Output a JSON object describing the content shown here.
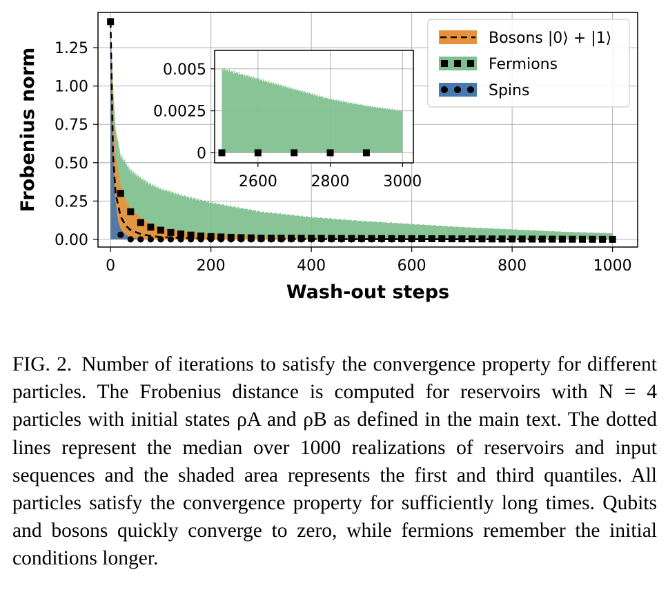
{
  "chart_data": [
    {
      "type": "area",
      "xlabel": "Wash-out steps",
      "ylabel": "Frobenius norm",
      "xlim": [
        -25,
        1050
      ],
      "ylim": [
        -0.05,
        1.48
      ],
      "xticks": [
        "0",
        "200",
        "400",
        "600",
        "800",
        "1000"
      ],
      "yticks": [
        "0.00",
        "0.25",
        "0.50",
        "0.75",
        "1.00",
        "1.25"
      ],
      "grid": true,
      "legend_position": "top-right",
      "series": [
        {
          "name": "Bosons |0⟩ + |1⟩",
          "color": "#e8913a",
          "median_style": "dashed",
          "median": {
            "x": [
              0,
              5,
              10,
              20,
              30,
              40,
              60,
              80,
              100,
              150,
              200,
              300,
              1000
            ],
            "y": [
              1.42,
              0.55,
              0.3,
              0.15,
              0.09,
              0.06,
              0.035,
              0.022,
              0.015,
              0.008,
              0.005,
              0.002,
              0.0
            ]
          },
          "band_upper": {
            "x": [
              0,
              5,
              10,
              20,
              30,
              40,
              60,
              80,
              100,
              150,
              200,
              300,
              400,
              600,
              1000
            ],
            "y": [
              1.42,
              0.9,
              0.55,
              0.35,
              0.26,
              0.2,
              0.14,
              0.1,
              0.08,
              0.05,
              0.035,
              0.02,
              0.012,
              0.006,
              0.002
            ]
          },
          "band_lower": {
            "x": [
              0,
              1000
            ],
            "y": [
              0.0,
              0.0
            ]
          }
        },
        {
          "name": "Fermions",
          "color": "#7fbf8e",
          "median_style": "square markers",
          "median": {
            "x": [
              0,
              20,
              40,
              60,
              80,
              100,
              120,
              140,
              160,
              180,
              200,
              250,
              300,
              1000
            ],
            "y": [
              1.42,
              0.3,
              0.18,
              0.11,
              0.08,
              0.06,
              0.045,
              0.035,
              0.028,
              0.022,
              0.018,
              0.012,
              0.008,
              0.0
            ]
          },
          "band_upper": {
            "x": [
              0,
              5,
              10,
              20,
              40,
              60,
              80,
              100,
              150,
              200,
              300,
              400,
              500,
              600,
              700,
              800,
              900,
              1000
            ],
            "y": [
              1.42,
              1.0,
              0.72,
              0.55,
              0.45,
              0.4,
              0.36,
              0.33,
              0.28,
              0.24,
              0.18,
              0.145,
              0.12,
              0.1,
              0.08,
              0.065,
              0.05,
              0.04
            ]
          },
          "band_lower": {
            "x": [
              0,
              1000
            ],
            "y": [
              0.0,
              0.0
            ]
          }
        },
        {
          "name": "Spins",
          "color": "#4878b0",
          "median_style": "circle markers",
          "median": {
            "x": [
              0,
              5,
              10,
              20,
              30,
              40,
              1000
            ],
            "y": [
              1.42,
              0.3,
              0.08,
              0.03,
              0.01,
              0.0,
              0.0
            ]
          },
          "band_upper": {
            "x": [
              0,
              3,
              6,
              10,
              15,
              20,
              30,
              40,
              60
            ],
            "y": [
              1.42,
              0.9,
              0.5,
              0.25,
              0.12,
              0.07,
              0.03,
              0.015,
              0.0
            ]
          },
          "band_lower": {
            "x": [
              0,
              1000
            ],
            "y": [
              0.0,
              0.0
            ]
          }
        }
      ]
    },
    {
      "type": "area",
      "panel": "inset",
      "xlim": [
        2480,
        3030
      ],
      "ylim": [
        -0.0006,
        0.0061
      ],
      "xticks": [
        "2600",
        "2800",
        "3000"
      ],
      "yticks": [
        "0",
        "0.0025",
        "0.005"
      ],
      "grid": true,
      "series": [
        {
          "name": "Fermions",
          "color": "#7fbf8e",
          "band_upper": {
            "x": [
              2500,
              2520,
              2600,
              2700,
              2800,
              2900,
              3000
            ],
            "y": [
              0.005,
              0.0049,
              0.0044,
              0.0038,
              0.0032,
              0.0028,
              0.0025
            ]
          },
          "band_lower": {
            "x": [
              2500,
              3000
            ],
            "y": [
              0.0,
              0.0
            ]
          },
          "median_points": {
            "x": [
              2500,
              2600,
              2700,
              2800,
              2900
            ],
            "y": [
              0,
              0,
              0,
              0,
              0
            ]
          }
        }
      ]
    }
  ],
  "caption": {
    "label": "FIG. 2.",
    "text": "Number of iterations to satisfy the convergence property for different particles. The Frobenius distance is computed for reservoirs with N = 4 particles with initial states ρA and ρB as defined in the main text. The dotted lines represent the median over 1000 realizations of reservoirs and input sequences and the shaded area represents the first and third quantiles. All particles satisfy the convergence property for sufficiently long times. Qubits and bosons quickly converge to zero, while fermions remember the initial conditions longer."
  }
}
